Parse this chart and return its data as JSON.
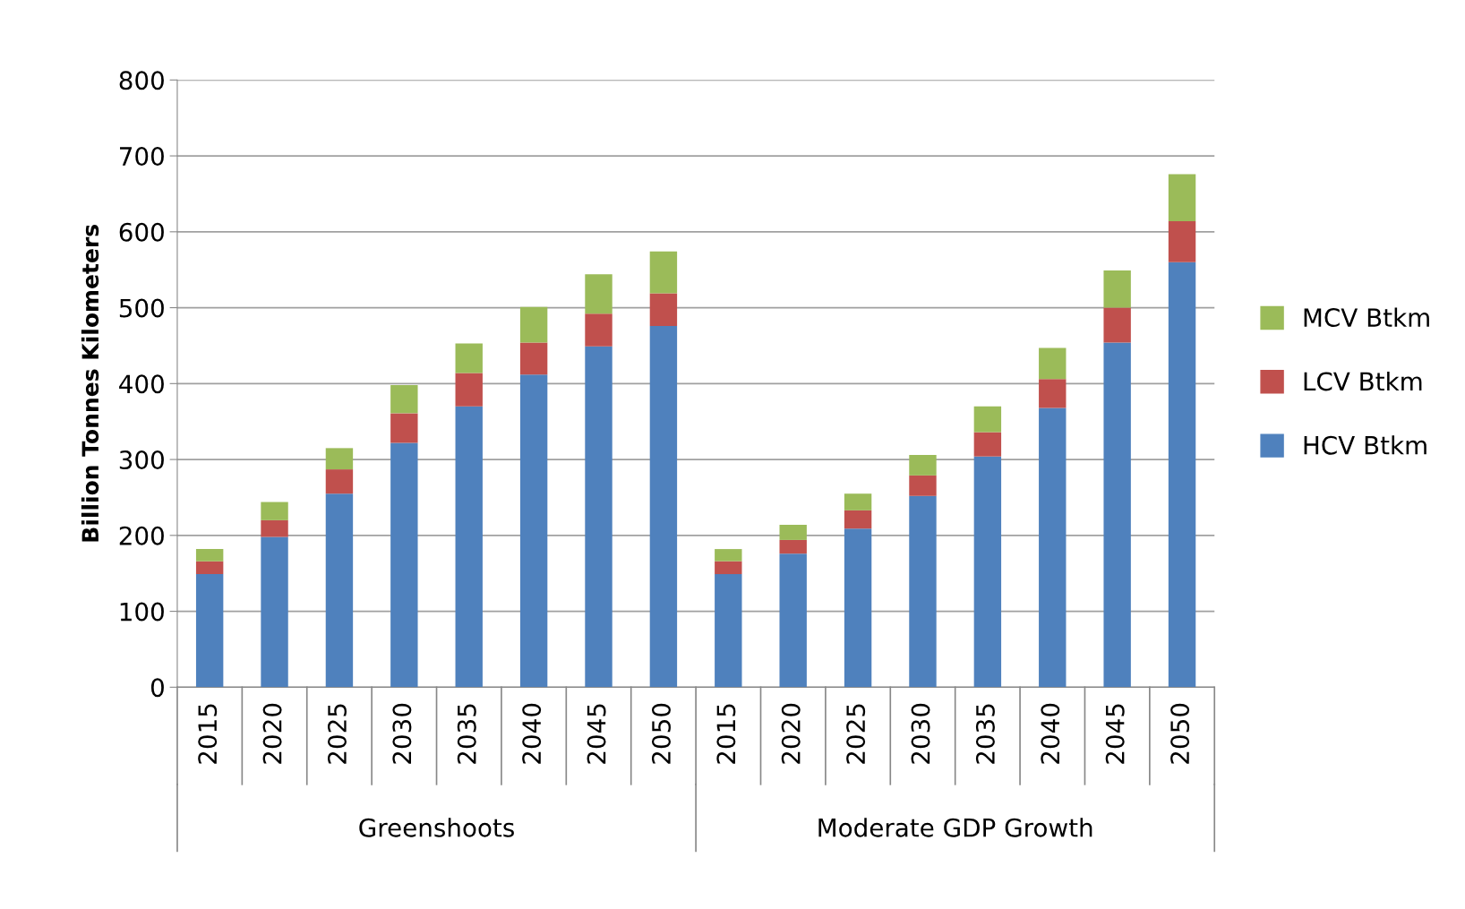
{
  "chart_data": {
    "type": "bar",
    "stacked": true,
    "ylabel": "Billion Tonnes Kilometers",
    "categories": [
      "2015",
      "2020",
      "2025",
      "2030",
      "2035",
      "2040",
      "2045",
      "2050",
      "2015",
      "2020",
      "2025",
      "2030",
      "2035",
      "2040",
      "2045",
      "2050"
    ],
    "series": [
      {
        "name": "HCV Btkm",
        "color": "#4f81bd",
        "values": [
          149,
          198,
          255,
          322,
          370,
          412,
          449,
          476,
          149,
          176,
          209,
          252,
          304,
          368,
          454,
          560
        ]
      },
      {
        "name": "LCV Btkm",
        "color": "#c0504d",
        "values": [
          17,
          22,
          32,
          39,
          44,
          42,
          43,
          43,
          17,
          18,
          24,
          27,
          32,
          38,
          46,
          54
        ]
      },
      {
        "name": "MCV Btkm",
        "color": "#9bbb59",
        "values": [
          16,
          24,
          28,
          37,
          39,
          47,
          52,
          55,
          16,
          20,
          22,
          27,
          34,
          41,
          49,
          62
        ]
      }
    ],
    "annotations": [
      "Greenshoots",
      "Moderate GDP Growth"
    ],
    "ylim": [
      0,
      800
    ],
    "yticks": [
      0,
      100,
      200,
      300,
      400,
      500,
      600,
      700,
      800
    ],
    "grid": "y",
    "legend": "right"
  }
}
